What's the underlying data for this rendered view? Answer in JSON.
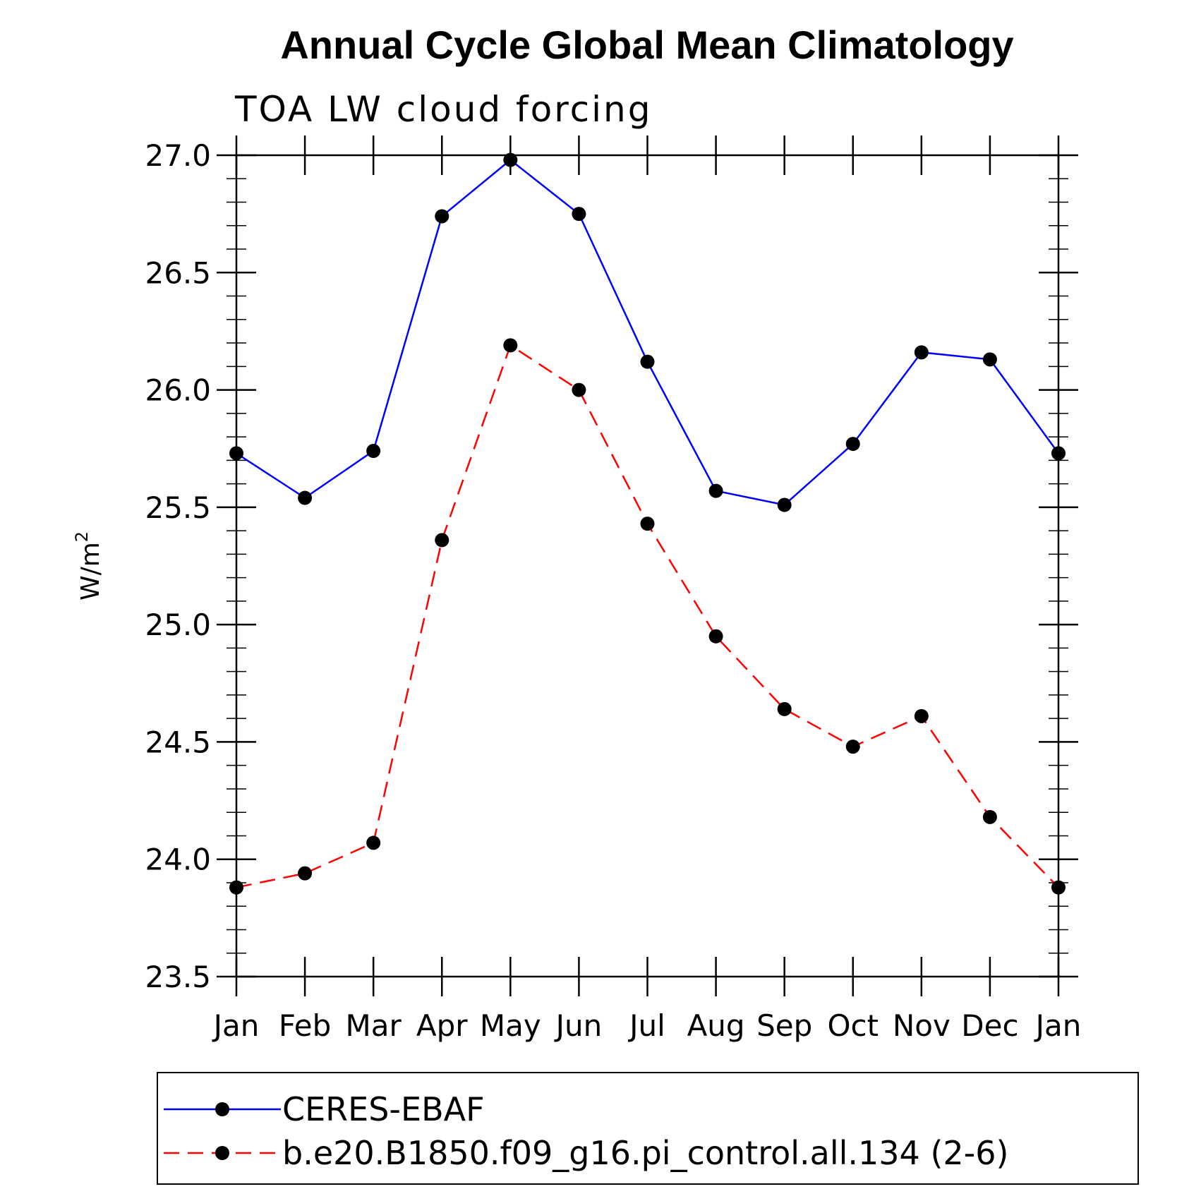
{
  "chart_data": {
    "type": "line",
    "title": "Annual Cycle Global Mean Climatology",
    "subtitle": "TOA LW cloud forcing",
    "xlabel": "",
    "ylabel_base": "W/m",
    "ylabel_sup": "2",
    "categories": [
      "Jan",
      "Feb",
      "Mar",
      "Apr",
      "May",
      "Jun",
      "Jul",
      "Aug",
      "Sep",
      "Oct",
      "Nov",
      "Dec",
      "Jan"
    ],
    "ylim": [
      23.5,
      27.0
    ],
    "yticks": [
      23.5,
      24.0,
      24.5,
      25.0,
      25.5,
      26.0,
      26.5,
      27.0
    ],
    "ytick_labels": [
      "23.5",
      "24.0",
      "24.5",
      "25.0",
      "25.5",
      "26.0",
      "26.5",
      "27.0"
    ],
    "legend_position": "bottom",
    "grid": false,
    "series": [
      {
        "name": "CERES-EBAF",
        "color": "#0000ff",
        "dash": "solid",
        "marker": "circle",
        "values": [
          25.73,
          25.54,
          25.74,
          26.74,
          26.98,
          26.75,
          26.12,
          25.57,
          25.51,
          25.77,
          26.16,
          26.13,
          25.73
        ]
      },
      {
        "name": "b.e20.B1850.f09_g16.pi_control.all.134 (2-6)",
        "color": "#ff0000",
        "dash": "dashed",
        "marker": "circle",
        "values": [
          23.88,
          23.94,
          24.07,
          25.36,
          26.19,
          26.0,
          25.43,
          24.95,
          24.64,
          24.48,
          24.61,
          24.18,
          23.88
        ]
      }
    ]
  }
}
